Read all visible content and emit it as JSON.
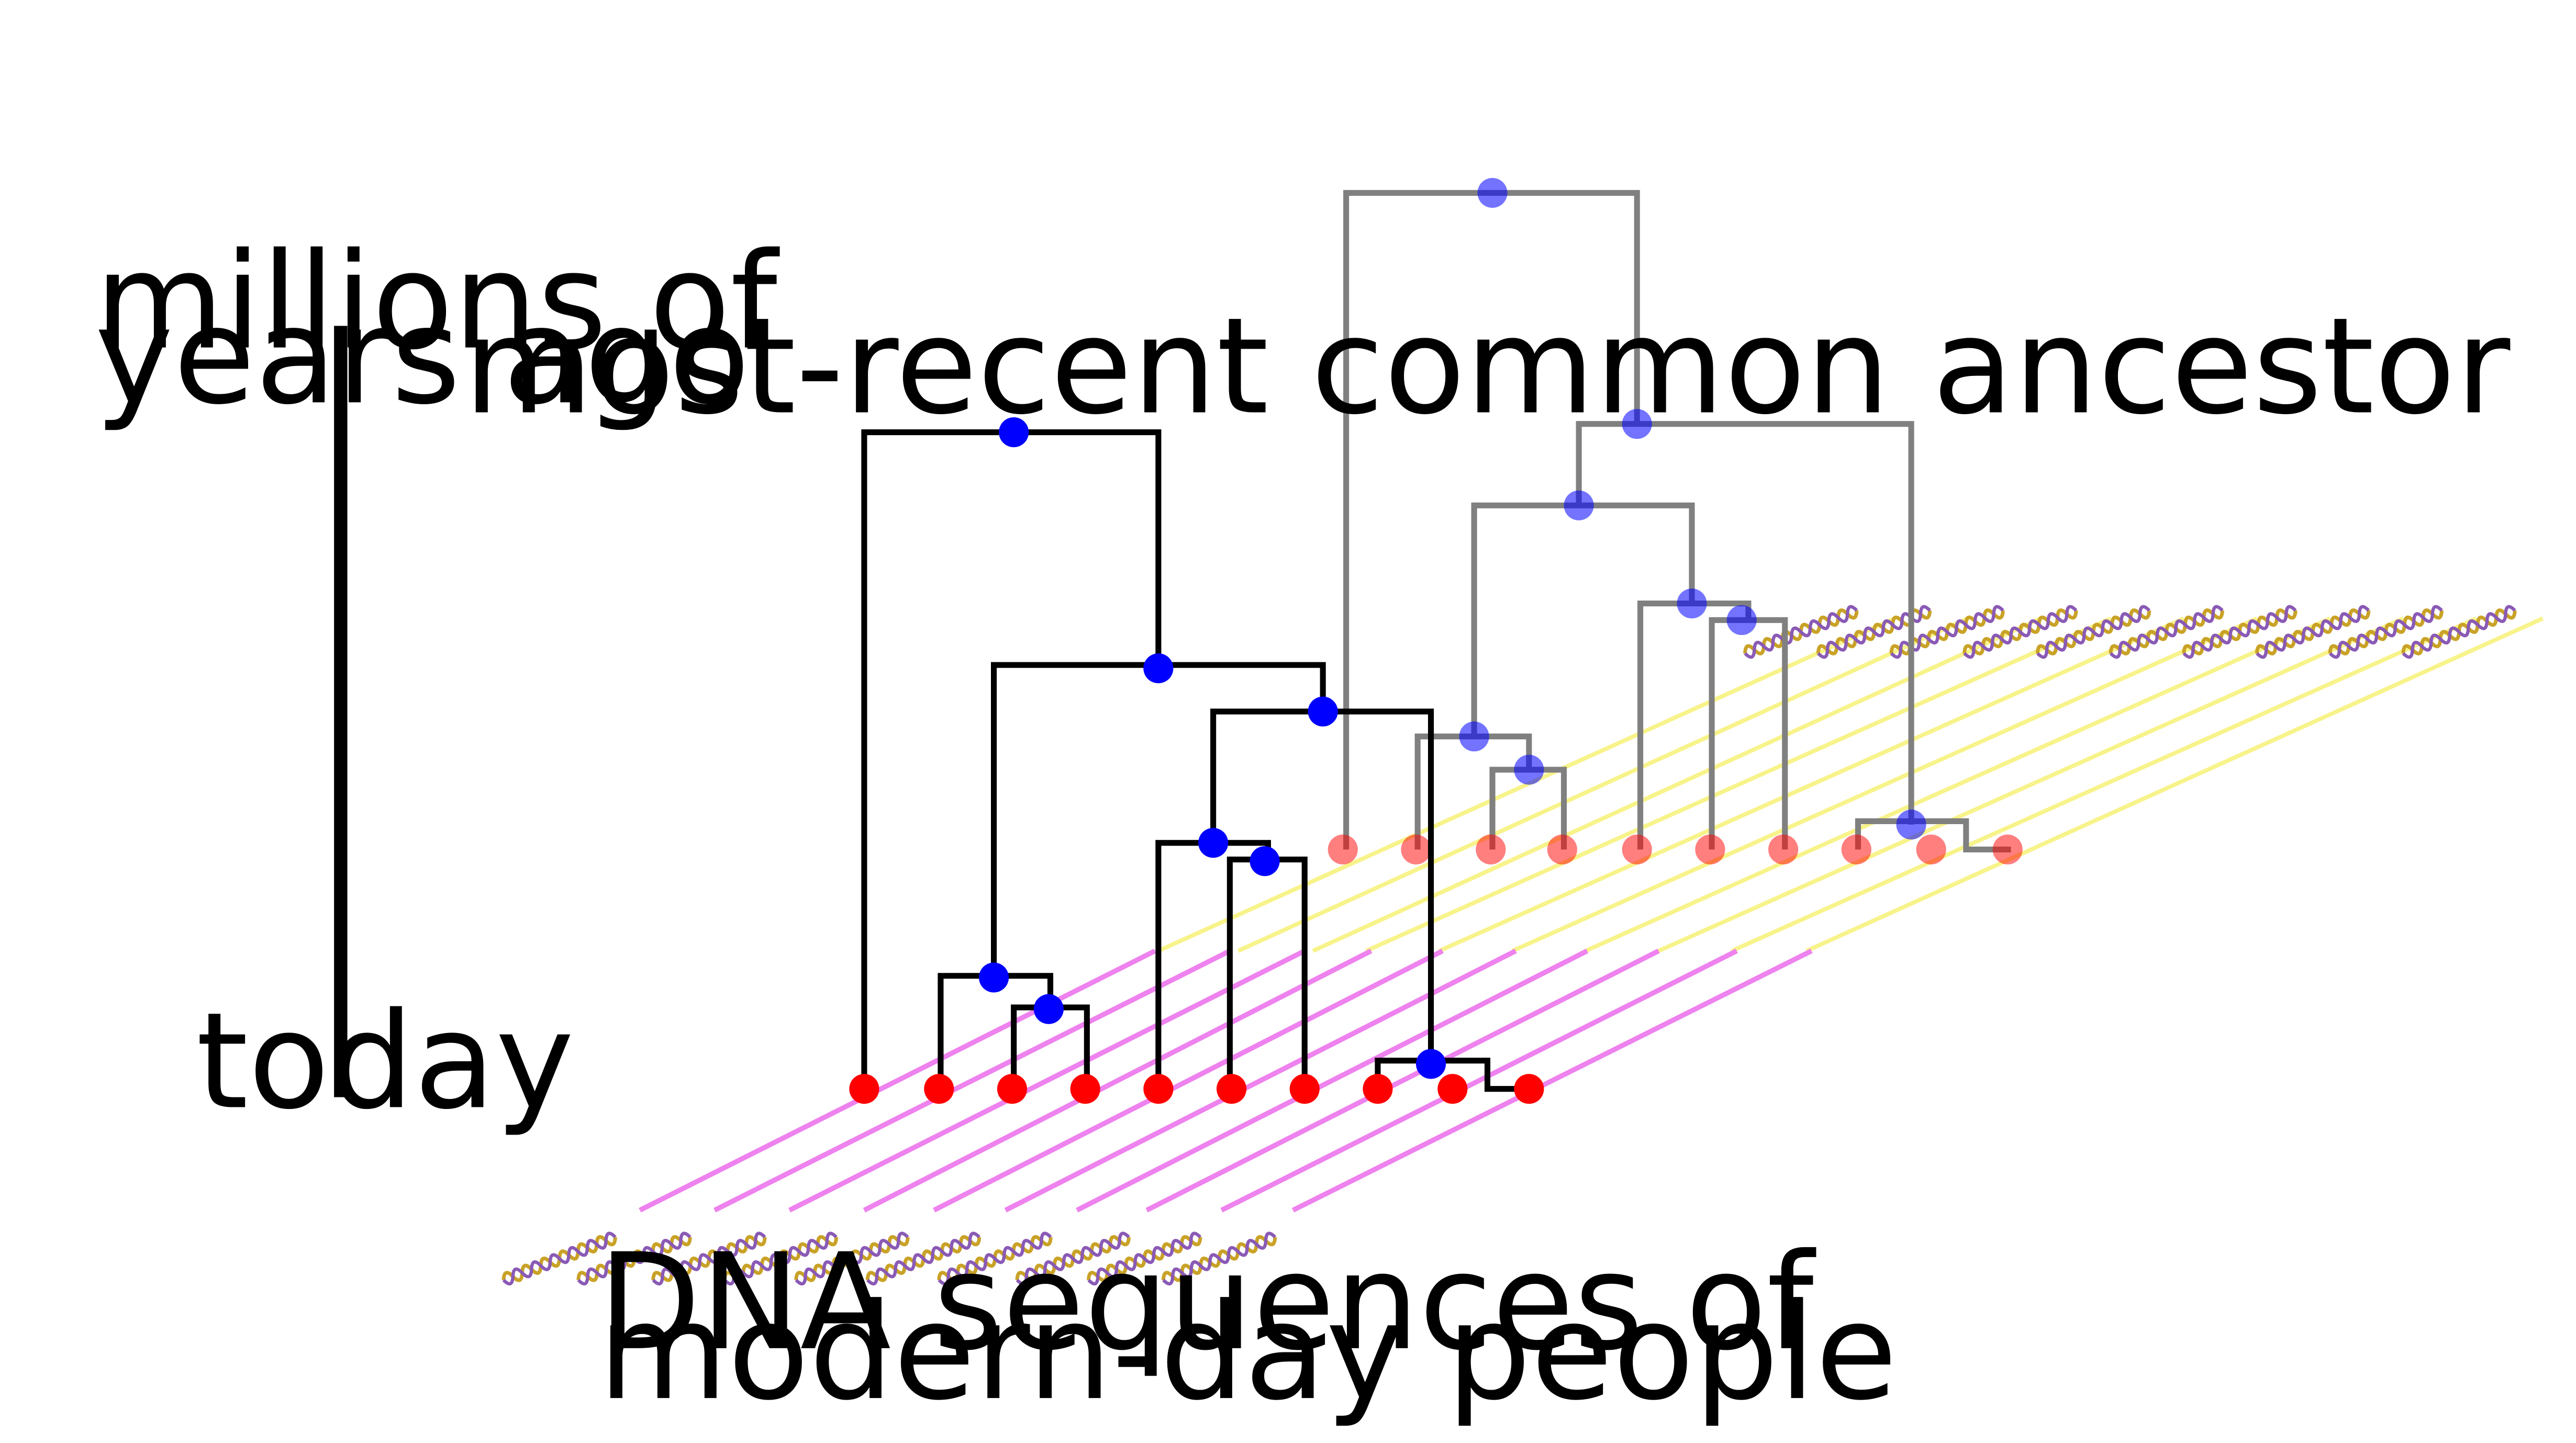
{
  "axis": {
    "top_label_line1": "millions of",
    "top_label_line2": "years ago",
    "bottom_label": "today"
  },
  "labels": {
    "mrca": "most-recent common ancestor",
    "dna_line1": "DNA sequences of",
    "dna_line2": "modern-day people"
  },
  "colors": {
    "tree_front": "#000000",
    "tree_back": "#808080",
    "internal_node": "#0000ff",
    "leaf_node": "#ff0000",
    "front_lines": "#ee82ee",
    "back_lines": "#f8f38a",
    "dna_gold": "#c9a227",
    "dna_purple": "#8a5ab5"
  }
}
